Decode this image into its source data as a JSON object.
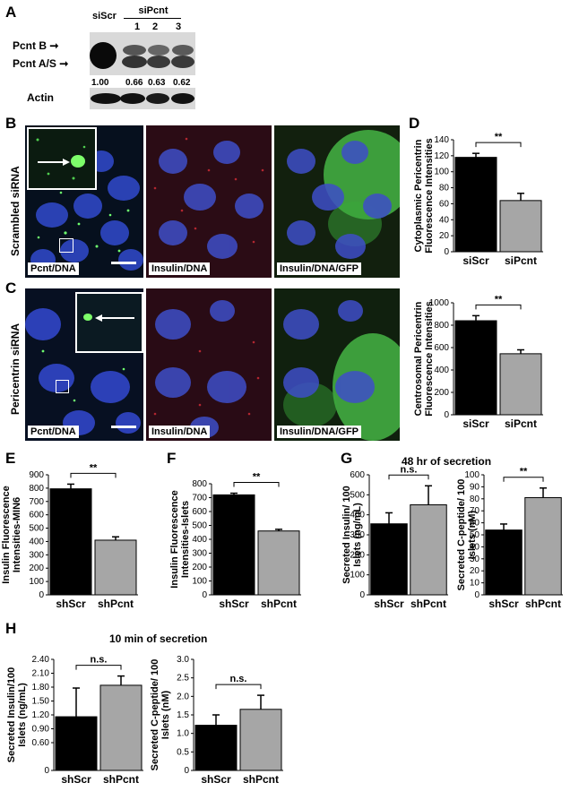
{
  "panel_A": {
    "letter": "A",
    "lanes": [
      "siScr",
      "1",
      "2",
      "3"
    ],
    "group_label": "siPcnt",
    "band_labels": [
      "Pcnt B",
      "Pcnt A/S"
    ],
    "ratios": [
      "1.00",
      "0.66",
      "0.63",
      "0.62"
    ],
    "loading_label": "Actin"
  },
  "panel_B": {
    "letter": "B",
    "row_label": "Scrambled siRNA",
    "images": [
      "Pcnt/DNA",
      "Insulin/DNA",
      "Insulin/DNA/GFP"
    ]
  },
  "panel_C": {
    "letter": "C",
    "row_label": "Pericentrin siRNA",
    "images": [
      "Pcnt/DNA",
      "Insulin/DNA",
      "Insulin/DNA/GFP"
    ]
  },
  "colors": {
    "black_bar": "#000000",
    "gray_bar": "#a6a6a6",
    "gfp": "#3cd23c",
    "dna": "#3a4fd0",
    "insulin": "#d2202a"
  },
  "chart_data": [
    {
      "id": "D1",
      "type": "bar",
      "letter": "D",
      "categories": [
        "siScr",
        "siPcnt"
      ],
      "values": [
        118,
        64
      ],
      "errors": [
        5,
        9
      ],
      "ylabel": "Cytoplasmic Pericentrin Fluorescence Intensities",
      "ylim": [
        0,
        140
      ],
      "ticks": [
        "0",
        "20",
        "40",
        "60",
        "80",
        "100",
        "120",
        "140"
      ],
      "significance": "**"
    },
    {
      "id": "D2",
      "type": "bar",
      "categories": [
        "siScr",
        "siPcnt"
      ],
      "values": [
        840,
        545
      ],
      "errors": [
        45,
        35
      ],
      "ylabel": "Centrosomal Pericentrin Fluorescence Intensities",
      "ylim": [
        0,
        1000
      ],
      "ticks": [
        "0",
        "200",
        "400",
        "600",
        "800",
        "1000"
      ],
      "significance": "**"
    },
    {
      "id": "E",
      "type": "bar",
      "letter": "E",
      "categories": [
        "shScr",
        "shPcnt"
      ],
      "values": [
        795,
        410
      ],
      "errors": [
        35,
        25
      ],
      "ylabel": "Insulin Fluorescence Intensities-MIN6",
      "ylim": [
        0,
        900
      ],
      "ticks": [
        "0",
        "100",
        "200",
        "300",
        "400",
        "500",
        "600",
        "700",
        "800",
        "900"
      ],
      "significance": "**"
    },
    {
      "id": "F",
      "type": "bar",
      "letter": "F",
      "categories": [
        "shScr",
        "shPcnt"
      ],
      "values": [
        720,
        460
      ],
      "errors": [
        12,
        12
      ],
      "ylabel": "Insulin Fluorescence Intensities-Islets",
      "ylim": [
        0,
        800
      ],
      "ticks": [
        "0",
        "100",
        "200",
        "300",
        "400",
        "500",
        "600",
        "700",
        "800"
      ],
      "significance": "**"
    },
    {
      "id": "G1",
      "type": "bar",
      "letter": "G",
      "title": "48 hr of secretion",
      "categories": [
        "shScr",
        "shPcnt"
      ],
      "values": [
        355,
        450
      ],
      "errors": [
        55,
        95
      ],
      "ylabel": "Secreted Insulin/ 100 Islets (ng/mL)",
      "ylim": [
        0,
        600
      ],
      "ticks": [
        "0",
        "100",
        "200",
        "300",
        "400",
        "500",
        "600"
      ],
      "significance": "n.s."
    },
    {
      "id": "G2",
      "type": "bar",
      "categories": [
        "shScr",
        "shPcnt"
      ],
      "values": [
        54,
        81
      ],
      "errors": [
        5,
        8
      ],
      "ylabel": "Secreted C-peptide/ 100 Islets (nM)",
      "ylim": [
        0,
        100
      ],
      "ticks": [
        "0",
        "10",
        "20",
        "30",
        "40",
        "50",
        "60",
        "70",
        "80",
        "90",
        "100"
      ],
      "significance": "**"
    },
    {
      "id": "H1",
      "type": "bar",
      "letter": "H",
      "title": "10 min of secretion",
      "categories": [
        "shScr",
        "shPcnt"
      ],
      "values": [
        1.16,
        1.84
      ],
      "errors": [
        0.62,
        0.2
      ],
      "ylabel": "Secreted Insulin/100 Islets (ng/mL)",
      "ylim": [
        0,
        2.4
      ],
      "ticks": [
        "0",
        "0.60",
        "0.90",
        "1.20",
        "1.50",
        "1.80",
        "2.10",
        "2.40"
      ],
      "tickvals": [
        0,
        0.6,
        0.9,
        1.2,
        1.5,
        1.8,
        2.1,
        2.4
      ],
      "significance": "n.s."
    },
    {
      "id": "H2",
      "type": "bar",
      "categories": [
        "shScr",
        "shPcnt"
      ],
      "values": [
        1.22,
        1.65
      ],
      "errors": [
        0.28,
        0.38
      ],
      "ylabel": "Secreted C-peptide/ 100 Islets (nM)",
      "ylim": [
        0,
        3.0
      ],
      "ticks": [
        "0",
        "0.5",
        "1.0",
        "1.5",
        "2.0",
        "2.5",
        "3.0"
      ],
      "significance": "n.s."
    }
  ]
}
